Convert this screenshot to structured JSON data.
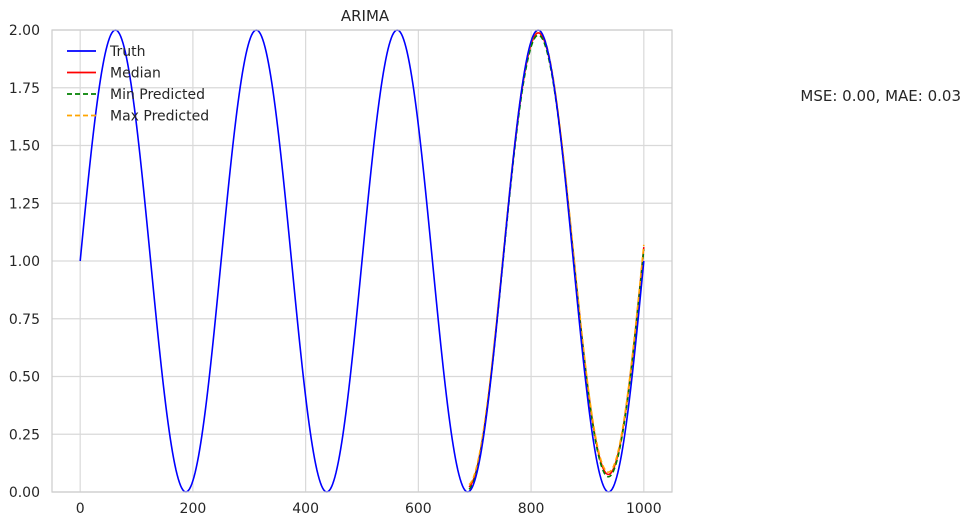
{
  "chart_data": {
    "type": "line",
    "title": "ARIMA",
    "xlabel": "",
    "ylabel": "",
    "xlim": [
      -50,
      1050
    ],
    "ylim": [
      0,
      2
    ],
    "xticks": [
      0,
      200,
      400,
      600,
      800,
      1000
    ],
    "yticks": [
      0.0,
      0.25,
      0.5,
      0.75,
      1.0,
      1.25,
      1.5,
      1.75,
      2.0
    ],
    "grid": true,
    "legend_position": "top-left",
    "annotation": "MSE: 0.00, MAE: 0.03",
    "truth_curve": {
      "form": "1 + sin(2*pi*x/250)",
      "x_start": 0,
      "x_end": 1000,
      "amplitude": 1,
      "offset": 1,
      "period": 250
    },
    "forecast_start": 690,
    "forecast_end": 1000,
    "series": [
      {
        "name": "Truth",
        "color": "#0000ff",
        "style": "solid",
        "x_range": [
          0,
          1000
        ]
      },
      {
        "name": "Median",
        "color": "#ff0000",
        "style": "solid",
        "x_range": [
          690,
          1000
        ],
        "peak": 1.96,
        "trough": 0.02,
        "end_value": 1.06
      },
      {
        "name": "Min Predicted",
        "color": "#008000",
        "style": "dashed",
        "x_range": [
          690,
          1000
        ],
        "peak": 1.95,
        "trough": 0.01,
        "end_value": 1.05
      },
      {
        "name": "Max Predicted",
        "color": "#ffa500",
        "style": "dashed",
        "x_range": [
          690,
          1000
        ],
        "peak": 1.97,
        "trough": 0.03,
        "end_value": 1.07
      }
    ]
  }
}
